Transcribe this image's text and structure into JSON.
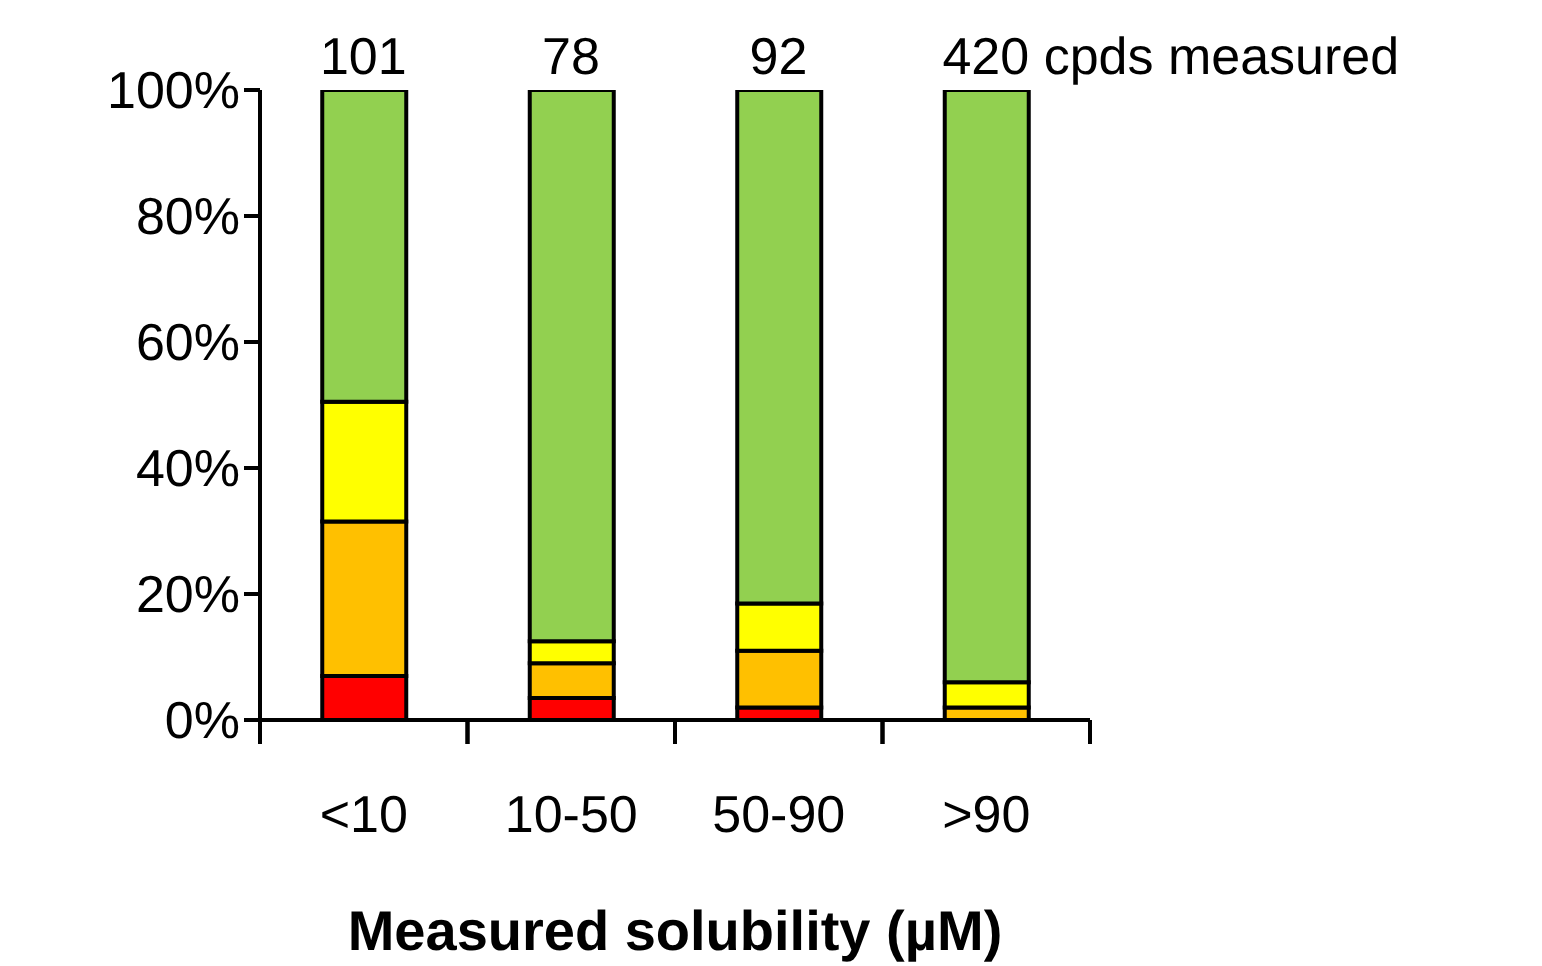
{
  "chart_data": {
    "type": "bar",
    "stacked": true,
    "xlabel": "Measured solubility (µM)",
    "categories": [
      "<10",
      "10-50",
      "50-90",
      ">90"
    ],
    "series": [
      {
        "color": "#ff0000",
        "values": [
          7,
          3.5,
          2,
          null
        ]
      },
      {
        "color": "#ffc000",
        "values": [
          24.5,
          5.5,
          9,
          2
        ]
      },
      {
        "color": "#ffff00",
        "values": [
          19,
          3.5,
          7.5,
          4
        ]
      },
      {
        "color": "#92d050",
        "values": [
          49.5,
          87.5,
          81.5,
          94
        ]
      }
    ],
    "ylim": [
      0,
      100
    ],
    "yticks": [
      {
        "value": 0,
        "label": "0%"
      },
      {
        "value": 20,
        "label": "20%"
      },
      {
        "value": 40,
        "label": "40%"
      },
      {
        "value": 60,
        "label": "60%"
      },
      {
        "value": 80,
        "label": "80%"
      },
      {
        "value": 100,
        "label": "100%"
      }
    ],
    "annotations": [
      {
        "text": "101",
        "x": "<10",
        "y": 100
      },
      {
        "text": "78",
        "x": "10-50",
        "y": 100
      },
      {
        "text": "92",
        "x": "50-90",
        "y": 100
      },
      {
        "text": "420 cpds measured",
        "x": ">90",
        "y": 100
      }
    ],
    "grid": false,
    "legend": false
  }
}
